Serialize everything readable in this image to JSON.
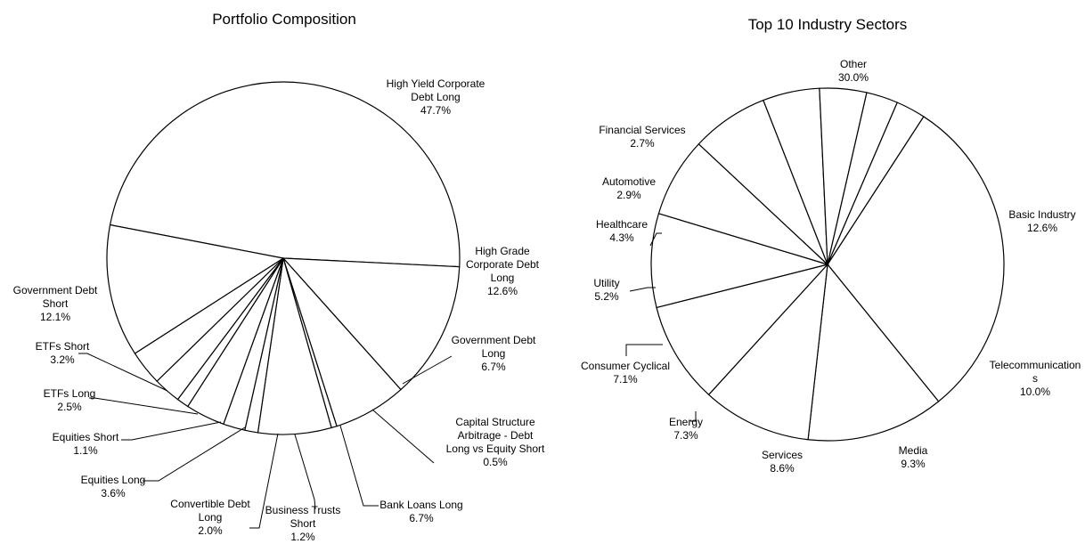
{
  "chart_data": [
    {
      "type": "pie",
      "title": "Portfolio Composition",
      "slices": [
        {
          "label": [
            "High Yield Corporate",
            "Debt Long"
          ],
          "value": 47.7,
          "display": "47.7%"
        },
        {
          "label": [
            "High Grade",
            "Corporate Debt",
            "Long"
          ],
          "value": 12.6,
          "display": "12.6%"
        },
        {
          "label": [
            "Government Debt",
            "Long"
          ],
          "value": 6.7,
          "display": "6.7%"
        },
        {
          "label": [
            "Capital Structure",
            "Arbitrage - Debt",
            "Long vs Equity Short"
          ],
          "value": 0.5,
          "display": "0.5%"
        },
        {
          "label": [
            "Bank Loans Long"
          ],
          "value": 6.7,
          "display": "6.7%"
        },
        {
          "label": [
            "Business Trusts",
            "Short"
          ],
          "value": 1.2,
          "display": "1.2%"
        },
        {
          "label": [
            "Convertible Debt",
            "Long"
          ],
          "value": 2.0,
          "display": "2.0%"
        },
        {
          "label": [
            "Equities Long"
          ],
          "value": 3.6,
          "display": "3.6%"
        },
        {
          "label": [
            "Equities Short"
          ],
          "value": 1.1,
          "display": "1.1%"
        },
        {
          "label": [
            "ETFs Long"
          ],
          "value": 2.5,
          "display": "2.5%"
        },
        {
          "label": [
            "ETFs Short"
          ],
          "value": 3.2,
          "display": "3.2%"
        },
        {
          "label": [
            "Government Debt",
            "Short"
          ],
          "value": 12.1,
          "display": "12.1%"
        }
      ]
    },
    {
      "type": "pie",
      "title": "Top 10 Industry Sectors",
      "slices": [
        {
          "label": [
            "Other"
          ],
          "value": 30.0,
          "display": "30.0%"
        },
        {
          "label": [
            "Basic Industry"
          ],
          "value": 12.6,
          "display": "12.6%"
        },
        {
          "label": [
            "Telecommunication",
            "s"
          ],
          "value": 10.0,
          "display": "10.0%"
        },
        {
          "label": [
            "Media"
          ],
          "value": 9.3,
          "display": "9.3%"
        },
        {
          "label": [
            "Services"
          ],
          "value": 8.6,
          "display": "8.6%"
        },
        {
          "label": [
            "Energy"
          ],
          "value": 7.3,
          "display": "7.3%"
        },
        {
          "label": [
            "Consumer Cyclical"
          ],
          "value": 7.1,
          "display": "7.1%"
        },
        {
          "label": [
            "Utility"
          ],
          "value": 5.2,
          "display": "5.2%"
        },
        {
          "label": [
            "Healthcare"
          ],
          "value": 4.3,
          "display": "4.3%"
        },
        {
          "label": [
            "Automotive"
          ],
          "value": 2.9,
          "display": "2.9%"
        },
        {
          "label": [
            "Financial Services"
          ],
          "value": 2.7,
          "display": "2.7%"
        }
      ]
    }
  ]
}
